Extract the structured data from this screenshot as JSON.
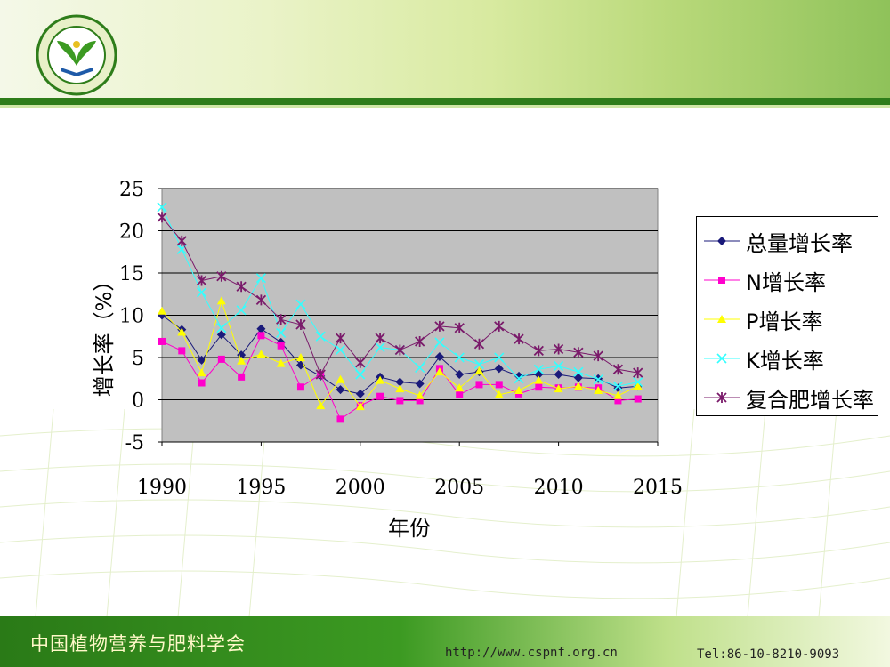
{
  "header": {
    "logo_icon": "society-logo-icon"
  },
  "footer": {
    "org_name": "中国植物营养与肥料学会",
    "url": "http://www.cspnf.org.cn",
    "tel": "Tel:86-10-8210-9093"
  },
  "chart_data": {
    "type": "line",
    "title": "",
    "xlabel": "年份",
    "ylabel": "增长率（%）",
    "xlim": [
      1990,
      2015
    ],
    "ylim": [
      -5,
      25
    ],
    "x_ticks": [
      "1990",
      "1995",
      "2000",
      "2005",
      "2010",
      "2015"
    ],
    "y_ticks": [
      "25",
      "20",
      "15",
      "10",
      "5",
      "0",
      "-5"
    ],
    "grid": true,
    "legend_position": "right",
    "x": [
      1990,
      1991,
      1992,
      1993,
      1994,
      1995,
      1996,
      1997,
      1998,
      1999,
      2000,
      2001,
      2002,
      2003,
      2004,
      2005,
      2006,
      2007,
      2008,
      2009,
      2010,
      2011,
      2012,
      2013,
      2014
    ],
    "series": [
      {
        "name": "总量增长率",
        "color": "#1a1a7a",
        "marker": "diamond",
        "values": [
          10.0,
          8.3,
          4.7,
          7.7,
          5.3,
          8.4,
          6.8,
          4.1,
          2.8,
          1.2,
          0.7,
          2.7,
          2.1,
          1.9,
          5.1,
          3.0,
          3.3,
          3.7,
          2.8,
          3.0,
          3.0,
          2.6,
          2.5,
          1.4,
          1.6
        ]
      },
      {
        "name": "N增长率",
        "color": "#ff00cc",
        "marker": "square",
        "values": [
          6.9,
          5.8,
          2.0,
          4.8,
          2.7,
          7.6,
          6.4,
          1.5,
          3.0,
          -2.3,
          -0.7,
          0.4,
          -0.1,
          -0.1,
          3.7,
          0.6,
          1.8,
          1.8,
          0.7,
          1.5,
          1.4,
          1.5,
          1.4,
          -0.1,
          0.1
        ]
      },
      {
        "name": "P增长率",
        "color": "#ffff00",
        "marker": "triangle",
        "values": [
          10.5,
          8.0,
          3.2,
          11.7,
          4.6,
          5.4,
          4.3,
          5.0,
          -0.7,
          2.4,
          -0.8,
          2.3,
          1.3,
          0.5,
          3.3,
          1.4,
          3.4,
          0.6,
          1.1,
          2.3,
          1.3,
          1.6,
          1.1,
          0.5,
          1.6
        ]
      },
      {
        "name": "K增长率",
        "color": "#33ffff",
        "marker": "x",
        "values": [
          22.8,
          17.8,
          12.7,
          8.5,
          10.6,
          14.4,
          7.9,
          11.3,
          7.5,
          5.9,
          3.0,
          6.2,
          5.9,
          3.8,
          6.8,
          5.0,
          4.2,
          5.0,
          2.5,
          3.6,
          4.0,
          3.3,
          2.4,
          1.6,
          2.1
        ]
      },
      {
        "name": "复合肥增长率",
        "color": "#7a1a6a",
        "marker": "star",
        "values": [
          21.6,
          18.8,
          14.1,
          14.6,
          13.4,
          11.8,
          9.5,
          8.9,
          3.0,
          7.3,
          4.4,
          7.3,
          5.9,
          6.9,
          8.7,
          8.5,
          6.6,
          8.7,
          7.2,
          5.8,
          6.0,
          5.6,
          5.2,
          3.6,
          3.2
        ]
      }
    ]
  }
}
